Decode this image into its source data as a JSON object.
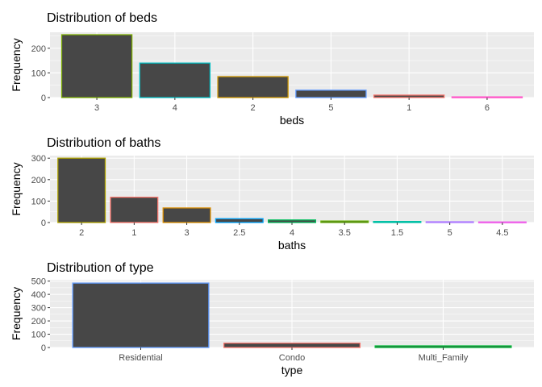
{
  "chart_data": [
    {
      "type": "bar",
      "title": "Distribution of beds",
      "xlabel": "beds",
      "ylabel": "Frequency",
      "categories": [
        "3",
        "4",
        "2",
        "5",
        "1",
        "6"
      ],
      "values": [
        255,
        140,
        85,
        30,
        10,
        3
      ],
      "bar_colors": [
        "#7CAE00",
        "#00BFC4",
        "#CD9600",
        "#619CFF",
        "#F8766D",
        "#FF61CC"
      ],
      "ylim": [
        0,
        265
      ],
      "yticks": [
        0,
        100,
        200
      ],
      "grid": true,
      "legend": "none"
    },
    {
      "type": "bar",
      "title": "Distribution of baths",
      "xlabel": "baths",
      "ylabel": "Frequency",
      "categories": [
        "2",
        "1",
        "3",
        "2.5",
        "4",
        "3.5",
        "1.5",
        "5",
        "4.5"
      ],
      "values": [
        300,
        118,
        68,
        18,
        12,
        7,
        5,
        4,
        3
      ],
      "bar_colors": [
        "#AEA200",
        "#F8766D",
        "#DB8E00",
        "#00A6FF",
        "#00BD5C",
        "#64B200",
        "#00C1A7",
        "#B385FF",
        "#EF67EB"
      ],
      "ylim": [
        0,
        312
      ],
      "yticks": [
        0,
        100,
        200,
        300
      ],
      "grid": true,
      "legend": "none"
    },
    {
      "type": "bar",
      "title": "Distribution of type",
      "xlabel": "type",
      "ylabel": "Frequency",
      "categories": [
        "Residential",
        "Condo",
        "Multi_Family"
      ],
      "values": [
        485,
        33,
        12
      ],
      "bar_colors": [
        "#619CFF",
        "#F8766D",
        "#00BA38"
      ],
      "ylim": [
        0,
        510
      ],
      "yticks": [
        0,
        100,
        200,
        300,
        400,
        500
      ],
      "grid": true,
      "legend": "none"
    }
  ]
}
